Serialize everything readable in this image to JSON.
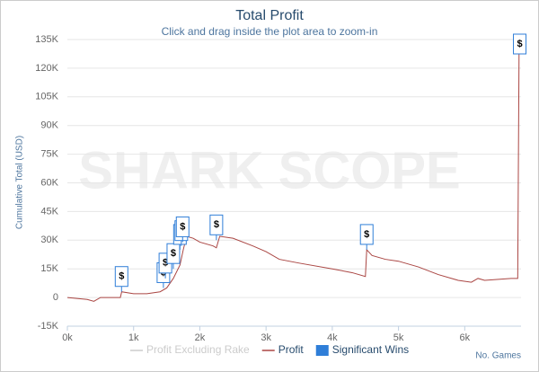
{
  "chart_data": {
    "type": "line",
    "title": "Total Profit",
    "subtitle": "Click and drag inside the plot area to zoom-in",
    "watermark": "SHARK SCOPE",
    "y_label": "Cumulative Total (USD)",
    "x_label": "No. Games",
    "xlim": [
      0,
      6850
    ],
    "ylim": [
      -15000,
      135000
    ],
    "xticks": [
      {
        "value": 0,
        "label": "0k"
      },
      {
        "value": 1000,
        "label": "1k"
      },
      {
        "value": 2000,
        "label": "2k"
      },
      {
        "value": 3000,
        "label": "3k"
      },
      {
        "value": 4000,
        "label": "4k"
      },
      {
        "value": 5000,
        "label": "5k"
      },
      {
        "value": 6000,
        "label": "6k"
      }
    ],
    "yticks": [
      {
        "value": -15000,
        "label": "-15K"
      },
      0,
      {
        "value": 15000,
        "label": "15K"
      },
      {
        "value": 30000,
        "label": "30K"
      },
      {
        "value": 45000,
        "label": "45K"
      },
      {
        "value": 60000,
        "label": "60K"
      },
      {
        "value": 75000,
        "label": "75K"
      },
      {
        "value": 90000,
        "label": "90K"
      },
      {
        "value": 105000,
        "label": "105K"
      },
      {
        "value": 120000,
        "label": "120K"
      },
      {
        "value": 135000,
        "label": "135K"
      }
    ],
    "grid": true,
    "x": [
      0,
      300,
      400,
      500,
      800,
      820,
      1000,
      1200,
      1400,
      1500,
      1600,
      1700,
      1750,
      1800,
      1900,
      2000,
      2200,
      2250,
      2300,
      2500,
      2800,
      3000,
      3200,
      3500,
      4000,
      4300,
      4500,
      4520,
      4600,
      4800,
      5000,
      5300,
      5600,
      5900,
      6100,
      6200,
      6300,
      6700,
      6800,
      6820,
      6830
    ],
    "series": [
      {
        "name": "Profit Excluding Rake",
        "color": "#cccccc",
        "visible": false
      },
      {
        "name": "Profit",
        "color": "#aa4643",
        "visible": true,
        "values": [
          0,
          -1000,
          -2000,
          0,
          0,
          3000,
          2000,
          2000,
          3000,
          5000,
          10000,
          17000,
          25000,
          32000,
          31000,
          29000,
          27000,
          26000,
          32000,
          31000,
          27000,
          24000,
          20000,
          18000,
          15000,
          13000,
          11000,
          25000,
          22000,
          20000,
          19000,
          16000,
          12000,
          9000,
          8000,
          10000,
          9000,
          10000,
          10000,
          128000,
          132000
        ]
      }
    ],
    "flags": {
      "name": "Significant Wins",
      "color": "#2f7ed8",
      "text": "$",
      "x": [
        818,
        1450,
        1480,
        1600,
        1700,
        1720,
        1740,
        2250,
        4520,
        6830
      ],
      "values": [
        3000,
        5000,
        10000,
        15000,
        25000,
        27000,
        29000,
        30000,
        25000,
        132000
      ]
    }
  }
}
